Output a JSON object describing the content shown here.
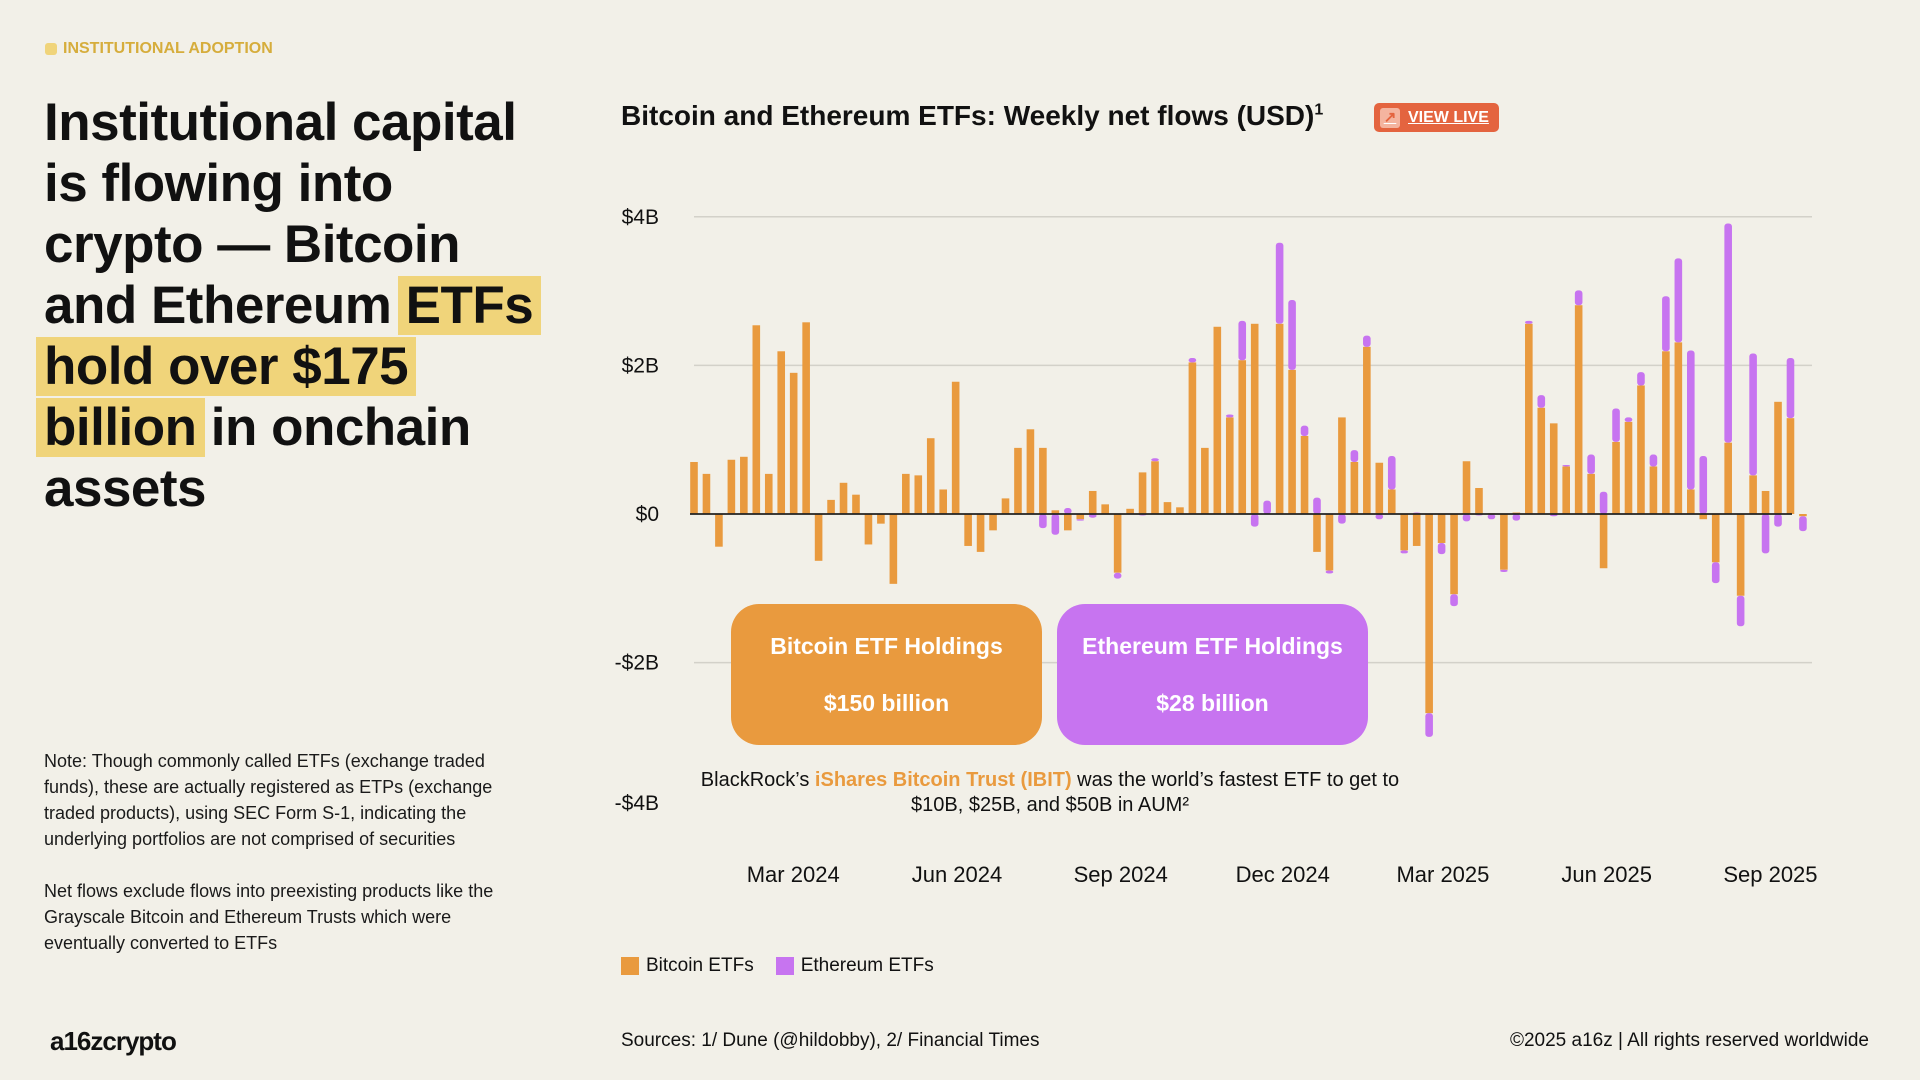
{
  "tag": {
    "label": "INSTITUTIONAL ADOPTION",
    "color": "#f0d47a"
  },
  "headline": {
    "parts": [
      {
        "text": "Institutional capital is flowing into crypto — Bitcoin and Ethereum ",
        "highlight": false
      },
      {
        "text": "ETFs hold over $175 billion",
        "highlight": true
      },
      {
        "text": " in onchain assets",
        "highlight": false
      }
    ],
    "highlight_color": "#f0d47a"
  },
  "note": {
    "p1": "Note: Though commonly called ETFs (exchange traded funds), these are actually registered as ETPs (exchange traded products), using SEC Form S-1, indicating the underlying portfolios are not comprised of securities",
    "p2": "Net flows exclude flows into preexisting products like the Grayscale Bitcoin and Ethereum Trusts which were eventually converted to ETFs"
  },
  "view_live": {
    "label": "VIEW LIVE",
    "icon": "arrow-up-right-icon",
    "color": "#e4643f"
  },
  "callouts": {
    "btc": {
      "title": "Bitcoin ETF Holdings",
      "value": "$150 billion"
    },
    "eth": {
      "title": "Ethereum ETF Holdings",
      "value": "$28 billion"
    }
  },
  "annotation": {
    "pre": "BlackRock’s ",
    "accent": "iShares Bitcoin Trust (IBIT)",
    "post": " was the world’s fastest ETF to get to $10B, $25B, and $50B in AUM²"
  },
  "footer": {
    "logo": "a16zcrypto",
    "sources": "Sources: 1/ Dune (@hildobby), 2/ Financial Times",
    "copyright": "©2025 a16z | All rights reserved worldwide"
  },
  "chart_data": {
    "type": "bar",
    "stacked": true,
    "title": "Bitcoin and Ethereum ETFs: Weekly net flows (USD)",
    "title_superscript": "1",
    "ylim": [
      -4,
      4
    ],
    "yunit": "USD billions",
    "y_ticks": [
      {
        "value": 4,
        "label": "$4B"
      },
      {
        "value": 2,
        "label": "$2B"
      },
      {
        "value": 0,
        "label": "$0"
      },
      {
        "value": -2,
        "label": "-$2B"
      },
      {
        "value": -4,
        "label": "-$4B"
      }
    ],
    "x_ticks": [
      {
        "date": "2024-03-01",
        "label": "Mar 2024"
      },
      {
        "date": "2024-06-01",
        "label": "Jun 2024"
      },
      {
        "date": "2024-09-01",
        "label": "Sep 2024"
      },
      {
        "date": "2024-12-01",
        "label": "Dec 2024"
      },
      {
        "date": "2025-03-01",
        "label": "Mar 2025"
      },
      {
        "date": "2025-06-01",
        "label": "Jun 2025"
      },
      {
        "date": "2025-09-01",
        "label": "Sep 2025"
      }
    ],
    "grid": true,
    "legend": "bottom-left",
    "categories": [
      "2024-01-12",
      "2024-01-19",
      "2024-01-26",
      "2024-02-02",
      "2024-02-09",
      "2024-02-16",
      "2024-02-23",
      "2024-03-01",
      "2024-03-08",
      "2024-03-15",
      "2024-03-22",
      "2024-03-29",
      "2024-04-05",
      "2024-04-12",
      "2024-04-19",
      "2024-04-26",
      "2024-05-03",
      "2024-05-10",
      "2024-05-17",
      "2024-05-24",
      "2024-05-31",
      "2024-06-07",
      "2024-06-14",
      "2024-06-21",
      "2024-06-28",
      "2024-07-05",
      "2024-07-12",
      "2024-07-19",
      "2024-07-26",
      "2024-08-02",
      "2024-08-09",
      "2024-08-16",
      "2024-08-23",
      "2024-08-30",
      "2024-09-06",
      "2024-09-13",
      "2024-09-20",
      "2024-09-27",
      "2024-10-04",
      "2024-10-11",
      "2024-10-18",
      "2024-10-25",
      "2024-11-01",
      "2024-11-08",
      "2024-11-15",
      "2024-11-22",
      "2024-11-29",
      "2024-12-06",
      "2024-12-13",
      "2024-12-20",
      "2024-12-27",
      "2025-01-03",
      "2025-01-10",
      "2025-01-17",
      "2025-01-24",
      "2025-01-31",
      "2025-02-07",
      "2025-02-14",
      "2025-02-21",
      "2025-02-28",
      "2025-03-07",
      "2025-03-14",
      "2025-03-21",
      "2025-03-28",
      "2025-04-04",
      "2025-04-11",
      "2025-04-18",
      "2025-04-25",
      "2025-05-02",
      "2025-05-09",
      "2025-05-16",
      "2025-05-23",
      "2025-05-30",
      "2025-06-06",
      "2025-06-13",
      "2025-06-20",
      "2025-06-27",
      "2025-07-04",
      "2025-07-11",
      "2025-07-18",
      "2025-07-25",
      "2025-08-01",
      "2025-08-08",
      "2025-08-15",
      "2025-08-22",
      "2025-08-29",
      "2025-09-05",
      "2025-09-12",
      "2025-09-19",
      "2025-09-26"
    ],
    "series": [
      {
        "name": "Bitcoin ETFs",
        "color": "#e99a3e",
        "values": [
          0.7,
          0.54,
          -0.44,
          0.73,
          0.77,
          2.54,
          0.54,
          2.19,
          1.9,
          2.58,
          -0.63,
          0.19,
          0.42,
          0.26,
          -0.41,
          -0.13,
          -0.94,
          0.54,
          0.52,
          1.02,
          0.33,
          1.78,
          -0.43,
          -0.51,
          -0.22,
          0.21,
          0.89,
          1.14,
          0.89,
          0.05,
          -0.22,
          -0.07,
          0.31,
          0.13,
          -0.79,
          0.07,
          0.56,
          0.71,
          0.16,
          0.09,
          2.04,
          0.89,
          2.52,
          1.3,
          2.07,
          2.56,
          0.0,
          2.56,
          1.94,
          1.05,
          -0.51,
          -0.76,
          1.3,
          0.7,
          2.25,
          0.69,
          0.33,
          -0.49,
          -0.43,
          -2.68,
          -0.39,
          -1.08,
          0.71,
          0.35,
          0.01,
          -0.75,
          0.02,
          2.56,
          1.43,
          1.22,
          0.64,
          2.81,
          0.54,
          -0.73,
          0.97,
          1.24,
          1.73,
          0.64,
          2.19,
          2.31,
          0.33,
          -0.07,
          -0.65,
          0.96,
          -1.1,
          0.52,
          0.31,
          1.51,
          1.29,
          -0.03
        ]
      },
      {
        "name": "Ethereum ETFs",
        "color": "#c774f0",
        "values": [
          0,
          0,
          0,
          0,
          0,
          0,
          0,
          0,
          0,
          0,
          0,
          0,
          0,
          0,
          0,
          0,
          0,
          0,
          0,
          0,
          0,
          0,
          0,
          0,
          0,
          0,
          0,
          0,
          -0.19,
          -0.28,
          0.08,
          -0.02,
          -0.05,
          0,
          -0.08,
          0,
          -0.02,
          0.04,
          0,
          0,
          0.06,
          0,
          0,
          0.04,
          0.53,
          -0.17,
          0.18,
          1.09,
          0.94,
          0.14,
          0.22,
          -0.04,
          -0.13,
          0.16,
          0.15,
          -0.07,
          0.45,
          -0.04,
          0.02,
          -0.32,
          -0.15,
          -0.16,
          -0.1,
          -0.02,
          -0.07,
          -0.03,
          -0.09,
          0.04,
          0.17,
          -0.03,
          0.02,
          0.2,
          0.26,
          0.3,
          0.45,
          0.06,
          0.18,
          0.16,
          0.74,
          1.13,
          1.87,
          0.78,
          -0.28,
          2.95,
          -0.41,
          1.64,
          -0.53,
          -0.17,
          0.81,
          -0.2
        ]
      }
    ]
  }
}
